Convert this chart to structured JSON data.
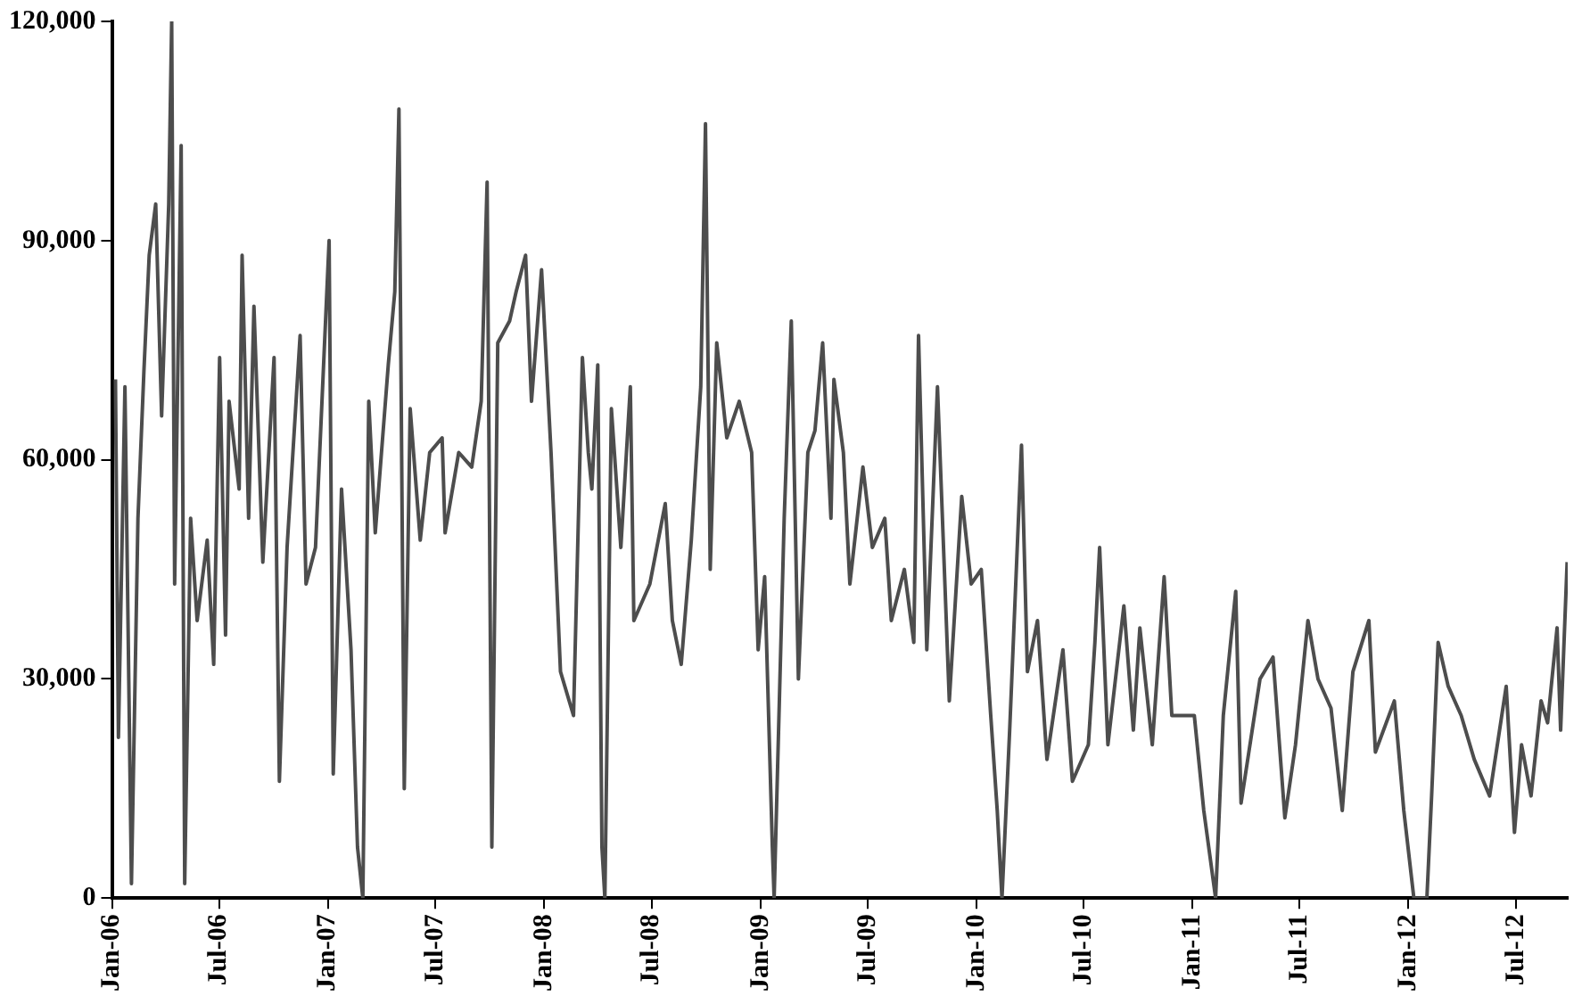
{
  "chart_data": {
    "type": "line",
    "grid": false,
    "legend": false,
    "marker": "none",
    "line_style": "solid",
    "xlim": [
      "2006-01-01",
      "2012-09-26"
    ],
    "xticks": [
      {
        "value": "2006-01",
        "label": "Jan-06"
      },
      {
        "value": "2006-07",
        "label": "Jul-06"
      },
      {
        "value": "2007-01",
        "label": "Jan-07"
      },
      {
        "value": "2007-07",
        "label": "Jul-07"
      },
      {
        "value": "2008-01",
        "label": "Jan-08"
      },
      {
        "value": "2008-07",
        "label": "Jul-08"
      },
      {
        "value": "2009-01",
        "label": "Jan-09"
      },
      {
        "value": "2009-07",
        "label": "Jul-09"
      },
      {
        "value": "2010-01",
        "label": "Jan-10"
      },
      {
        "value": "2010-07",
        "label": "Jul-10"
      },
      {
        "value": "2011-01",
        "label": "Jan-11"
      },
      {
        "value": "2011-07",
        "label": "Jul-11"
      },
      {
        "value": "2012-01",
        "label": "Jan-12"
      },
      {
        "value": "2012-07",
        "label": "Jul-12"
      }
    ],
    "ylim": [
      0,
      120000
    ],
    "yticks": [
      {
        "value": 0,
        "label": "0"
      },
      {
        "value": 30000,
        "label": "30,000"
      },
      {
        "value": 60000,
        "label": "60,000"
      },
      {
        "value": 90000,
        "label": "90,000"
      },
      {
        "value": 120000,
        "label": "120,000"
      }
    ],
    "series": [
      {
        "color": "#4d4d4d",
        "x": [
          "2006-01-07",
          "2006-01-12",
          "2006-01-23",
          "2006-02-03",
          "2006-02-14",
          "2006-02-24",
          "2006-03-05",
          "2006-03-16",
          "2006-03-26",
          "2006-04-07",
          "2006-04-12",
          "2006-04-17",
          "2006-04-28",
          "2006-05-04",
          "2006-05-14",
          "2006-05-25",
          "2006-06-11",
          "2006-06-22",
          "2006-07-02",
          "2006-07-12",
          "2006-07-18",
          "2006-08-04",
          "2006-08-09",
          "2006-08-20",
          "2006-08-29",
          "2006-09-13",
          "2006-10-02",
          "2006-10-11",
          "2006-10-24",
          "2006-11-15",
          "2006-11-25",
          "2006-12-11",
          "2007-01-03",
          "2007-01-10",
          "2007-01-24",
          "2007-02-09",
          "2007-02-20",
          "2007-03-01",
          "2007-03-11",
          "2007-03-22",
          "2007-04-13",
          "2007-04-24",
          "2007-05-01",
          "2007-05-10",
          "2007-05-20",
          "2007-06-06",
          "2007-06-22",
          "2007-07-13",
          "2007-07-18",
          "2007-08-10",
          "2007-09-01",
          "2007-09-17",
          "2007-09-27",
          "2007-10-05",
          "2007-10-15",
          "2007-11-04",
          "2007-11-15",
          "2007-12-01",
          "2007-12-11",
          "2007-12-28",
          "2008-01-13",
          "2008-01-29",
          "2008-02-20",
          "2008-03-06",
          "2008-03-16",
          "2008-03-22",
          "2008-04-01",
          "2008-04-08",
          "2008-04-13",
          "2008-04-24",
          "2008-05-10",
          "2008-05-26",
          "2008-06-01",
          "2008-06-28",
          "2008-07-24",
          "2008-08-05",
          "2008-08-20",
          "2008-09-06",
          "2008-09-22",
          "2008-09-30",
          "2008-10-08",
          "2008-10-19",
          "2008-11-05",
          "2008-11-26",
          "2008-12-17",
          "2008-12-28",
          "2009-01-08",
          "2009-01-21",
          "2009-01-24",
          "2009-02-10",
          "2009-02-22",
          "2009-03-06",
          "2009-03-22",
          "2009-04-03",
          "2009-04-16",
          "2009-04-30",
          "2009-05-05",
          "2009-05-21",
          "2009-06-01",
          "2009-06-23",
          "2009-07-09",
          "2009-07-30",
          "2009-08-10",
          "2009-09-01",
          "2009-09-17",
          "2009-09-25",
          "2009-10-09",
          "2009-10-27",
          "2009-11-16",
          "2009-12-07",
          "2009-12-23",
          "2010-01-09",
          "2010-01-25",
          "2010-02-05",
          "2010-02-13",
          "2010-02-26",
          "2010-03-18",
          "2010-03-28",
          "2010-04-14",
          "2010-04-30",
          "2010-05-27",
          "2010-06-12",
          "2010-07-09",
          "2010-07-20",
          "2010-07-28",
          "2010-08-11",
          "2010-09-07",
          "2010-09-23",
          "2010-10-04",
          "2010-10-25",
          "2010-11-14",
          "2010-11-27",
          "2011-01-04",
          "2011-01-20",
          "2011-02-09",
          "2011-02-22",
          "2011-03-15",
          "2011-03-24",
          "2011-04-25",
          "2011-05-17",
          "2011-06-06",
          "2011-06-24",
          "2011-07-15",
          "2011-08-01",
          "2011-08-23",
          "2011-09-11",
          "2011-09-29",
          "2011-10-26",
          "2011-11-06",
          "2011-12-08",
          "2011-12-24",
          "2012-01-10",
          "2012-02-01",
          "2012-02-09",
          "2012-02-20",
          "2012-03-08",
          "2012-03-30",
          "2012-04-21",
          "2012-05-17",
          "2012-06-14",
          "2012-06-28",
          "2012-07-10",
          "2012-07-26",
          "2012-08-12",
          "2012-08-23",
          "2012-09-08",
          "2012-09-14",
          "2012-09-25"
        ],
        "values": [
          71000,
          22000,
          70000,
          2000,
          52000,
          72000,
          88000,
          95000,
          66000,
          95000,
          120000,
          43000,
          103000,
          2000,
          52000,
          38000,
          49000,
          32000,
          74000,
          36000,
          68000,
          56000,
          88000,
          52000,
          81000,
          46000,
          74000,
          16000,
          48000,
          77000,
          43000,
          48000,
          90000,
          17000,
          56000,
          34000,
          7000,
          0,
          68000,
          50000,
          73000,
          83000,
          108000,
          15000,
          67000,
          49000,
          61000,
          63000,
          50000,
          61000,
          59000,
          68000,
          98000,
          7000,
          76000,
          79000,
          83000,
          88000,
          68000,
          86000,
          61000,
          31000,
          25000,
          74000,
          61000,
          56000,
          73000,
          7000,
          0,
          67000,
          48000,
          70000,
          38000,
          43000,
          54000,
          38000,
          32000,
          49000,
          70000,
          106000,
          45000,
          76000,
          63000,
          68000,
          61000,
          34000,
          44000,
          7000,
          0,
          52000,
          79000,
          30000,
          61000,
          64000,
          76000,
          52000,
          71000,
          61000,
          43000,
          59000,
          48000,
          52000,
          38000,
          45000,
          35000,
          77000,
          34000,
          70000,
          27000,
          55000,
          43000,
          45000,
          25000,
          12000,
          0,
          23000,
          62000,
          31000,
          38000,
          19000,
          34000,
          16000,
          21000,
          35000,
          48000,
          21000,
          40000,
          23000,
          37000,
          21000,
          44000,
          25000,
          25000,
          12000,
          0,
          25000,
          42000,
          13000,
          30000,
          33000,
          11000,
          21000,
          38000,
          30000,
          26000,
          12000,
          31000,
          38000,
          20000,
          27000,
          12000,
          0,
          0,
          14000,
          35000,
          29000,
          25000,
          19000,
          14000,
          29000,
          9000,
          21000,
          14000,
          27000,
          24000,
          37000,
          23000,
          46000
        ]
      }
    ]
  }
}
